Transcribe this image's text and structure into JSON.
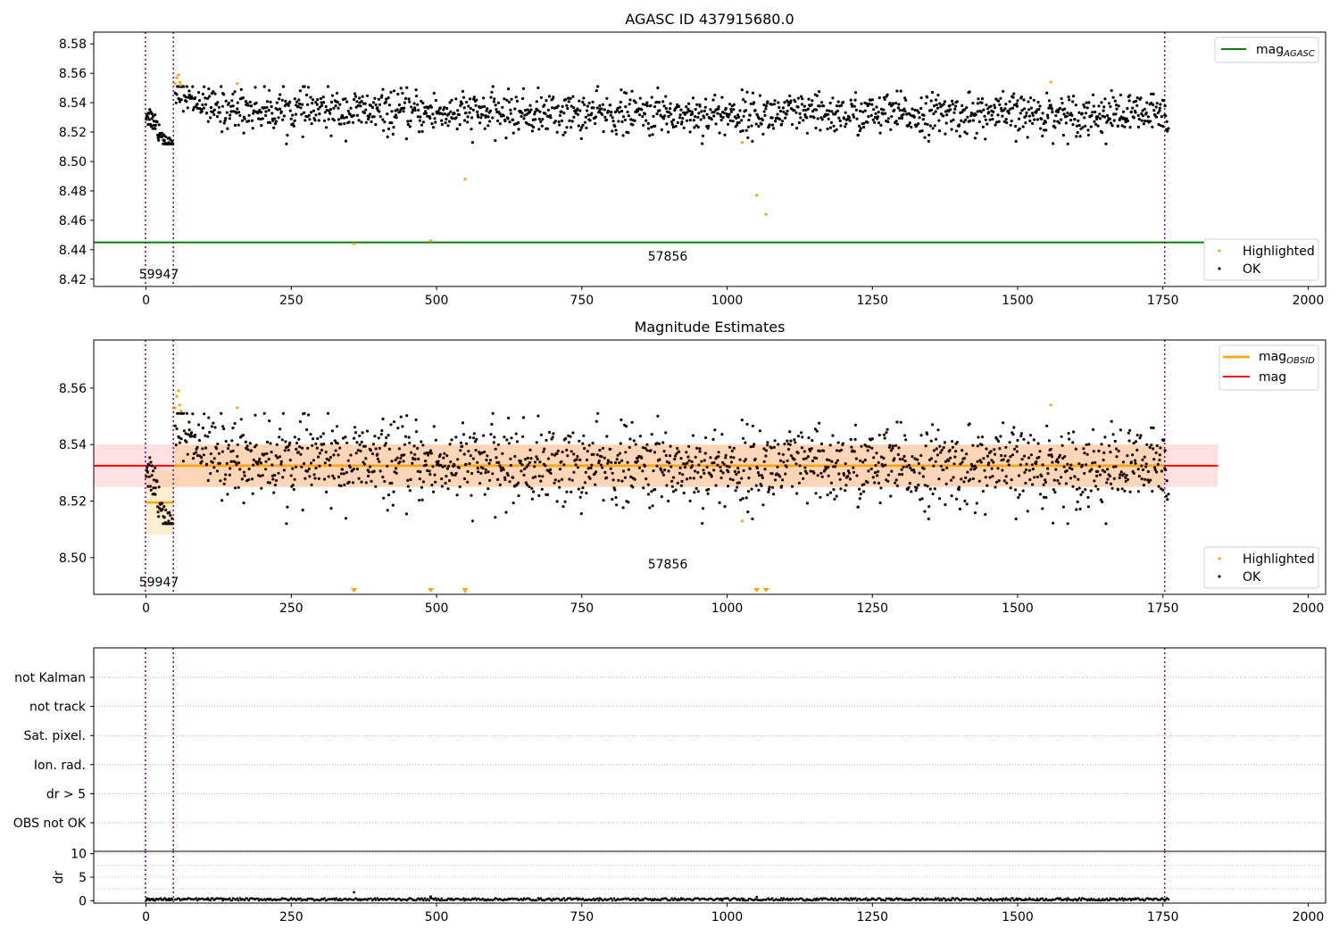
{
  "chart_data": [
    {
      "type": "scatter",
      "title": "AGASC ID 437915680.0",
      "xlim": [
        -90,
        2030
      ],
      "ylim": [
        8.415,
        8.588
      ],
      "xticks": [
        "0",
        "250",
        "500",
        "750",
        "1000",
        "1250",
        "1500",
        "1750",
        "2000"
      ],
      "xtick_values": [
        0,
        250,
        500,
        750,
        1000,
        1250,
        1500,
        1750,
        2000
      ],
      "yticks": [
        "8.42",
        "8.44",
        "8.46",
        "8.48",
        "8.50",
        "8.52",
        "8.54",
        "8.56",
        "8.58"
      ],
      "ytick_values": [
        8.42,
        8.44,
        8.46,
        8.48,
        8.5,
        8.52,
        8.54,
        8.56,
        8.58
      ],
      "vlines": [
        -1,
        47,
        1753
      ],
      "mag_agasc": 8.445,
      "annotations": [
        {
          "text": "59947",
          "x": 22,
          "y": 8.42
        },
        {
          "text": "57856",
          "x": 900,
          "y": 8.433
        }
      ],
      "legend_upper": [
        {
          "label": "mag",
          "subscript": "AGASC",
          "color": "#008000"
        }
      ],
      "legend_lower": [
        {
          "label": "Highlighted",
          "color": "#ffa500"
        },
        {
          "label": "OK",
          "color": "#000000"
        }
      ],
      "series": [
        {
          "name": "OK",
          "color": "#000000",
          "segments": [
            {
              "x_start": 0,
              "x_end": 47,
              "count": 60,
              "curve": [
                [
                  0,
                  8.533
                ],
                [
                  15,
                  8.527
                ],
                [
                  25,
                  8.519
                ],
                [
                  35,
                  8.513
                ],
                [
                  47,
                  8.506
                ]
              ],
              "spread": 0.004
            },
            {
              "x_start": 50,
              "x_end": 100,
              "count": 45,
              "curve": [
                [
                  50,
                  8.548
                ],
                [
                  100,
                  8.539
                ]
              ],
              "spread": 0.005
            },
            {
              "x_start": 100,
              "x_end": 1760,
              "count": 1500,
              "curve": [
                [
                  100,
                  8.536
                ],
                [
                  500,
                  8.533
                ],
                [
                  1000,
                  8.532
                ],
                [
                  1760,
                  8.532
                ]
              ],
              "spread": 0.007
            }
          ]
        },
        {
          "name": "Highlighted",
          "color": "#ffa500",
          "points": [
            [
              50,
              8.553
            ],
            [
              53,
              8.557
            ],
            [
              56,
              8.559
            ],
            [
              58,
              8.554
            ],
            [
              60,
              8.552
            ],
            [
              157,
              8.553
            ],
            [
              549,
              8.488
            ],
            [
              1026,
              8.513
            ],
            [
              1051,
              8.477
            ],
            [
              1067,
              8.464
            ],
            [
              1557,
              8.554
            ],
            [
              358,
              8.444
            ],
            [
              490,
              8.446
            ]
          ]
        }
      ]
    },
    {
      "type": "scatter",
      "title": "Magnitude Estimates",
      "xlim": [
        -90,
        2030
      ],
      "ylim": [
        8.487,
        8.577
      ],
      "xticks": [
        "0",
        "250",
        "500",
        "750",
        "1000",
        "1250",
        "1500",
        "1750",
        "2000"
      ],
      "xtick_values": [
        0,
        250,
        500,
        750,
        1000,
        1250,
        1500,
        1750,
        2000
      ],
      "yticks": [
        "8.50",
        "8.52",
        "8.54",
        "8.56"
      ],
      "ytick_values": [
        8.5,
        8.52,
        8.54,
        8.56
      ],
      "vlines": [
        -1,
        47,
        1753
      ],
      "mag": 8.5325,
      "mag_band": [
        8.525,
        8.54
      ],
      "mag_band_x": [
        -90,
        1845
      ],
      "mag_obsid": [
        {
          "x_start": -1,
          "x_end": 47,
          "value": 8.5195,
          "band": [
            8.508,
            8.531
          ]
        },
        {
          "x_start": 47,
          "x_end": 1753,
          "value": 8.5325,
          "band": [
            8.525,
            8.54
          ]
        }
      ],
      "annotations": [
        {
          "text": "59947",
          "x": 22,
          "y": 8.4915
        },
        {
          "text": "57856",
          "x": 900,
          "y": 8.4975
        }
      ],
      "legend_upper": [
        {
          "label": "mag",
          "subscript": "OBSID",
          "color": "#ffa500"
        },
        {
          "label": "mag",
          "subscript": "",
          "color": "#ff0000"
        }
      ],
      "legend_lower": [
        {
          "label": "Highlighted",
          "color": "#ffa500"
        },
        {
          "label": "OK",
          "color": "#000000"
        }
      ],
      "offscale_markers_x": [
        358,
        490,
        549,
        1051,
        1067
      ]
    },
    {
      "type": "scatter",
      "title": "",
      "xlim": [
        -90,
        2030
      ],
      "categories": [
        "not Kalman",
        "not track",
        "Sat. pixel.",
        "Ion. rad.",
        "dr > 5",
        "OBS not OK"
      ],
      "vlines": [
        -1,
        47,
        1753
      ]
    },
    {
      "type": "line",
      "title": "",
      "xlim": [
        -90,
        2030
      ],
      "ylim": [
        -0.5,
        10.5
      ],
      "ylabel": "dr",
      "xticks": [
        "0",
        "250",
        "500",
        "750",
        "1000",
        "1250",
        "1500",
        "1750",
        "2000"
      ],
      "xtick_values": [
        0,
        250,
        500,
        750,
        1000,
        1250,
        1500,
        1750,
        2000
      ],
      "yticks": [
        "0",
        "5",
        "10"
      ],
      "ytick_values": [
        0,
        5,
        10
      ],
      "vlines": [
        -1,
        47,
        1753
      ],
      "dr_baseline": 0.3,
      "dr_outliers": [
        [
          358,
          1.8
        ],
        [
          490,
          0.9
        ],
        [
          1051,
          0.8
        ]
      ]
    }
  ]
}
